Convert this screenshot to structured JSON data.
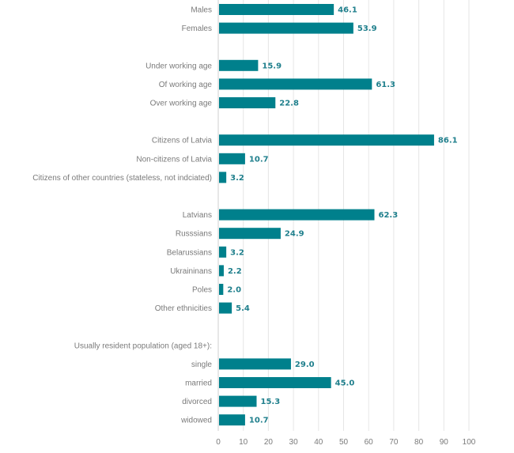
{
  "chart_data": {
    "type": "bar",
    "orientation": "horizontal",
    "title": "",
    "xlabel": "",
    "ylabel": "",
    "xlim": [
      0,
      100
    ],
    "x_ticks": [
      0,
      10,
      20,
      30,
      40,
      50,
      60,
      70,
      80,
      90,
      100
    ],
    "grid": true,
    "bar_color": "#00808c",
    "value_label_color": "#1f7f8c",
    "categories": [
      "Males",
      "Females",
      "",
      "Under working age",
      "Of working age",
      "Over working age",
      "",
      "Citizens of Latvia",
      "Non-citizens of Latvia",
      "Citizens of other countries (stateless, not indciated)",
      "",
      "Latvians",
      "Russsians",
      "Belarussians",
      "Ukraininans",
      "Poles",
      "Other ethnicities",
      "",
      "Usually resident population (aged 18+):",
      "single",
      "married",
      "divorced",
      "widowed"
    ],
    "values": [
      46.1,
      53.9,
      null,
      15.9,
      61.3,
      22.8,
      null,
      86.1,
      10.7,
      3.2,
      null,
      62.3,
      24.9,
      3.2,
      2.2,
      2.0,
      5.4,
      null,
      null,
      29.0,
      45.0,
      15.3,
      10.7
    ],
    "value_labels": [
      "46.1",
      "53.9",
      "",
      "15.9",
      "61.3",
      "22.8",
      "",
      "86.1",
      "10.7",
      "3.2",
      "",
      "62.3",
      "24.9",
      "3.2",
      "2.2",
      "2.0",
      "5.4",
      "",
      "",
      "29.0",
      "45.0",
      "15.3",
      "10.7"
    ]
  }
}
